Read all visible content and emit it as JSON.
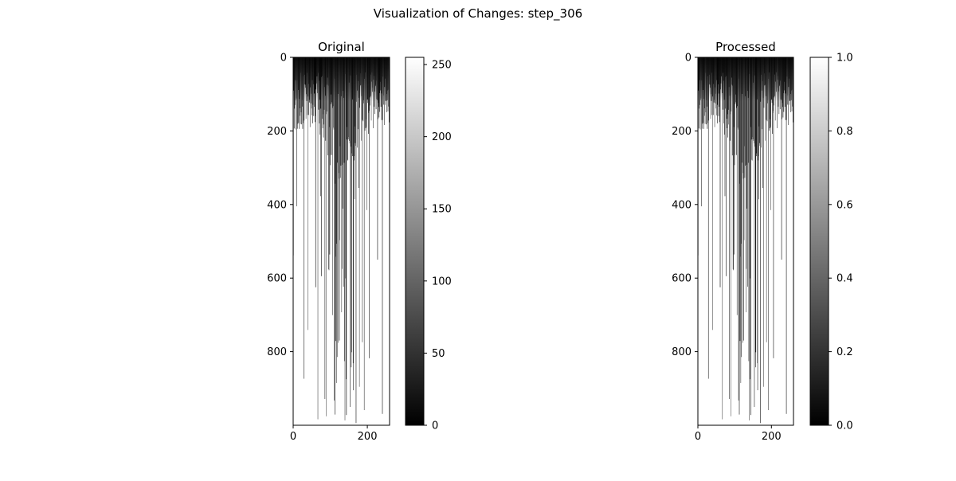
{
  "figure_title": "Visualization of Changes: step_306",
  "chart_data": [
    {
      "type": "heatmap",
      "title": "Original",
      "xlabel": "",
      "ylabel": "",
      "colormap": "gray",
      "grid": false,
      "image_shape": [
        1000,
        260
      ],
      "xlim": [
        0,
        260
      ],
      "ylim": [
        1000,
        0
      ],
      "xticks": [
        0,
        200
      ],
      "yticks": [
        0,
        200,
        400,
        600,
        800
      ],
      "colorbar": {
        "range": [
          0,
          255
        ],
        "ticks": [
          0,
          50,
          100,
          150,
          200,
          250
        ]
      },
      "pattern": "column-wise streaks: dark near top rows (0-300), mostly white lower with scattered dark vertical lines, denser around columns 100-160"
    },
    {
      "type": "heatmap",
      "title": "Processed",
      "xlabel": "",
      "ylabel": "",
      "colormap": "gray",
      "grid": false,
      "image_shape": [
        1000,
        260
      ],
      "xlim": [
        0,
        260
      ],
      "ylim": [
        1000,
        0
      ],
      "xticks": [
        0,
        200
      ],
      "yticks": [
        0,
        200,
        400,
        600,
        800
      ],
      "colorbar": {
        "range": [
          0.0,
          1.0
        ],
        "ticks": [
          "0.0",
          "0.2",
          "0.4",
          "0.6",
          "0.8",
          "1.0"
        ]
      },
      "pattern": "same structure as Original, normalized to 0-1"
    }
  ]
}
